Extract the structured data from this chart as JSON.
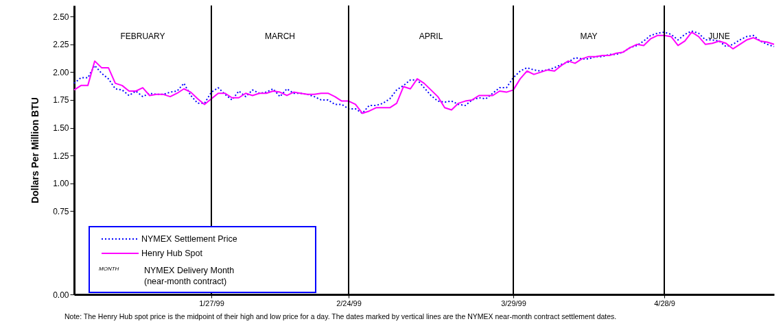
{
  "chart_data": {
    "type": "line",
    "ylabel": "Dollars Per Million BTU",
    "categories": [
      null,
      null,
      null,
      null,
      null,
      null,
      null,
      null,
      null,
      null,
      null,
      null,
      null,
      null,
      null,
      null,
      null,
      null,
      null,
      null,
      "1/27/99",
      null,
      null,
      null,
      null,
      null,
      null,
      null,
      null,
      null,
      null,
      null,
      null,
      null,
      null,
      null,
      null,
      null,
      null,
      null,
      "2/24/99",
      null,
      null,
      null,
      null,
      null,
      null,
      null,
      null,
      null,
      null,
      null,
      null,
      null,
      null,
      null,
      null,
      null,
      null,
      null,
      null,
      null,
      null,
      null,
      "3/29/99",
      null,
      null,
      null,
      null,
      null,
      null,
      null,
      null,
      null,
      null,
      null,
      null,
      null,
      null,
      null,
      null,
      null,
      null,
      null,
      null,
      null,
      "4/28/9",
      null,
      null,
      null,
      null,
      null,
      null,
      null,
      null,
      null,
      null,
      null,
      null,
      null,
      null,
      null,
      null
    ],
    "series": [
      {
        "name": "NYMEX Settlement Price",
        "color": "#0000ff",
        "line_style": "dotted",
        "values": [
          1.9,
          1.95,
          1.95,
          2.06,
          1.99,
          1.94,
          1.85,
          1.84,
          1.79,
          1.83,
          1.78,
          1.81,
          1.8,
          1.8,
          1.82,
          1.83,
          1.9,
          1.79,
          1.72,
          1.72,
          1.82,
          1.86,
          1.8,
          1.75,
          1.83,
          1.78,
          1.84,
          1.81,
          1.82,
          1.85,
          1.78,
          1.85,
          1.81,
          1.81,
          1.8,
          1.78,
          1.75,
          1.75,
          1.71,
          1.71,
          1.67,
          1.67,
          1.63,
          1.7,
          1.7,
          1.72,
          1.76,
          1.84,
          1.88,
          1.93,
          1.93,
          1.86,
          1.79,
          1.74,
          1.73,
          1.74,
          1.71,
          1.7,
          1.75,
          1.77,
          1.76,
          1.81,
          1.86,
          1.86,
          1.95,
          2.01,
          2.04,
          2.02,
          2.01,
          2.02,
          2.04,
          2.07,
          2.09,
          2.13,
          2.12,
          2.12,
          2.14,
          2.14,
          2.16,
          2.16,
          2.18,
          2.22,
          2.24,
          2.28,
          2.33,
          2.35,
          2.36,
          2.34,
          2.29,
          2.34,
          2.37,
          2.35,
          2.29,
          2.29,
          2.28,
          2.23,
          2.25,
          2.29,
          2.32,
          2.33,
          2.28,
          2.25,
          2.23
        ]
      },
      {
        "name": "Henry Hub Spot",
        "color": "#ff00ff",
        "line_style": "solid",
        "values": [
          1.84,
          1.88,
          1.88,
          2.1,
          2.04,
          2.04,
          1.9,
          1.88,
          1.83,
          1.83,
          1.86,
          1.79,
          1.8,
          1.8,
          1.78,
          1.81,
          1.85,
          1.82,
          1.76,
          1.71,
          1.76,
          1.81,
          1.81,
          1.77,
          1.77,
          1.81,
          1.79,
          1.81,
          1.81,
          1.83,
          1.82,
          1.79,
          1.82,
          1.81,
          1.8,
          1.8,
          1.81,
          1.81,
          1.78,
          1.74,
          1.74,
          1.71,
          1.63,
          1.65,
          1.68,
          1.68,
          1.68,
          1.72,
          1.87,
          1.85,
          1.94,
          1.9,
          1.84,
          1.78,
          1.68,
          1.66,
          1.72,
          1.74,
          1.75,
          1.79,
          1.79,
          1.79,
          1.83,
          1.82,
          1.84,
          1.94,
          2.01,
          1.98,
          2.0,
          2.02,
          2.01,
          2.06,
          2.1,
          2.08,
          2.12,
          2.14,
          2.14,
          2.15,
          2.15,
          2.17,
          2.18,
          2.22,
          2.25,
          2.24,
          2.3,
          2.33,
          2.33,
          2.32,
          2.24,
          2.28,
          2.36,
          2.32,
          2.25,
          2.26,
          2.28,
          2.26,
          2.21,
          2.25,
          2.29,
          2.31,
          2.28,
          2.27,
          2.25
        ]
      }
    ],
    "ylim": [
      0,
      2.6
    ],
    "yticks": [
      {
        "value": 0,
        "label": "0.00"
      },
      {
        "value": 0.75,
        "label": "0.75"
      },
      {
        "value": 1,
        "label": "1.00"
      },
      {
        "value": 1.25,
        "label": "1.25"
      },
      {
        "value": 1.5,
        "label": "1.50"
      },
      {
        "value": 1.75,
        "label": "1.75"
      },
      {
        "value": 2,
        "label": "2.00"
      },
      {
        "value": 2.25,
        "label": "2.25"
      },
      {
        "value": 2.5,
        "label": "2.50"
      }
    ],
    "ref_lines": [
      {
        "axis": "x",
        "value": "1/27/99",
        "color": "#000000"
      },
      {
        "axis": "x",
        "value": "2/24/99",
        "color": "#000000"
      },
      {
        "axis": "x",
        "value": "3/29/99",
        "color": "#000000"
      },
      {
        "axis": "x",
        "value": "4/28/9",
        "color": "#000000"
      }
    ],
    "annotations": [
      "FEBRUARY",
      "MARCH",
      "APRIL",
      "MAY",
      "JUNE",
      "MONTH",
      "NYMEX Delivery Month",
      "(near-month contract)",
      "Note: The Henry Hub spot price is the midpoint of their high and low price for a day. The dates marked by vertical lines are the NYMEX near-month contract settlement dates."
    ],
    "legend": "bottom left"
  }
}
